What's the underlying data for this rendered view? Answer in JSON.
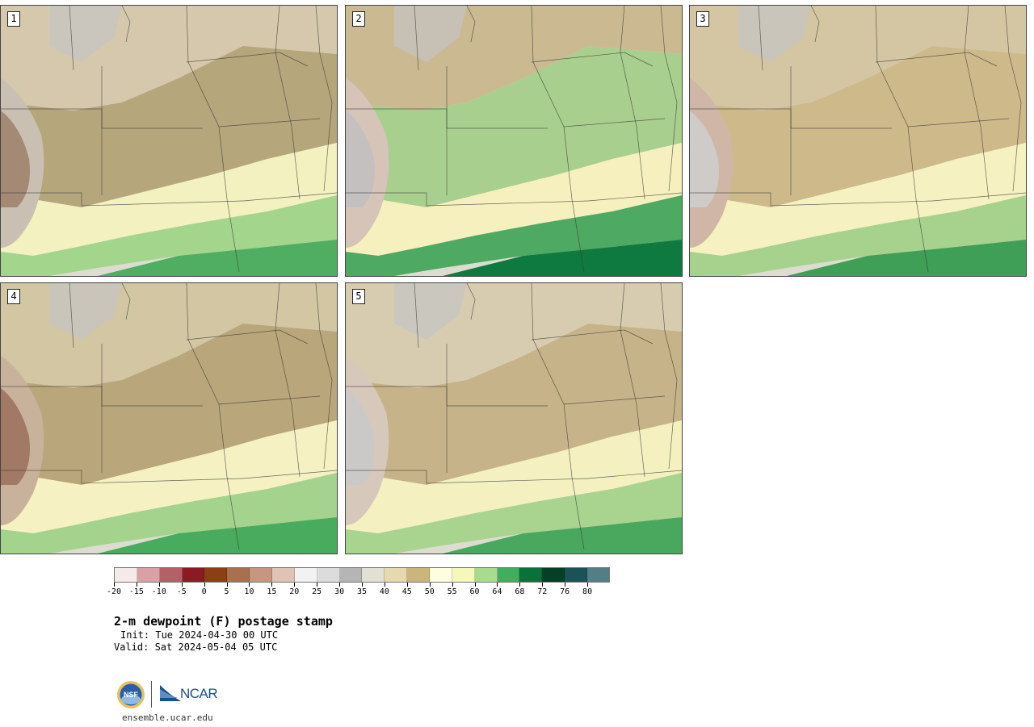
{
  "panels": [
    {
      "label": "1",
      "zones": [
        "#d6c8ac",
        "#b6a67c",
        "#f3f1c0",
        "#a3d58c",
        "#4fae61",
        "#c9c0b3",
        "#9d7f6a"
      ]
    },
    {
      "label": "2",
      "zones": [
        "#cbb992",
        "#a9cf8e",
        "#f5f0be",
        "#4ea962",
        "#0f7a3f",
        "#d7c4b8",
        "#c0c0c0"
      ]
    },
    {
      "label": "3",
      "zones": [
        "#d5c6a3",
        "#ceb98b",
        "#f6f1c0",
        "#a7d28e",
        "#3f9f57",
        "#d0b6a7",
        "#cfcfcf"
      ]
    },
    {
      "label": "4",
      "zones": [
        "#d2c6a3",
        "#b9a67a",
        "#f6f1c2",
        "#a3d38d",
        "#48ab5d",
        "#c9b29c",
        "#9b6f5a"
      ]
    },
    {
      "label": "5",
      "zones": [
        "#d8ccb0",
        "#c6b389",
        "#f4f0c0",
        "#a9d48f",
        "#4aa85e",
        "#d7c8bc",
        "#c9c9c9"
      ]
    }
  ],
  "colorbar": {
    "colors": [
      "#f4eaea",
      "#d9a1a5",
      "#b46066",
      "#8c1a24",
      "#8c3f12",
      "#a8714d",
      "#c6977e",
      "#dfc4b5",
      "#f2f2f2",
      "#dcdcdc",
      "#b5b5b5",
      "#e1e0d2",
      "#e6d9b0",
      "#cbb57b",
      "#fffde0",
      "#f6f8ba",
      "#a9db8f",
      "#42ad5f",
      "#07733b",
      "#053f25",
      "#1b5157",
      "#547d85"
    ],
    "ticks": [
      "-20",
      "-15",
      "-10",
      "-5",
      "0",
      "5",
      "10",
      "15",
      "20",
      "25",
      "30",
      "35",
      "40",
      "45",
      "50",
      "55",
      "60",
      "64",
      "68",
      "72",
      "76",
      "80"
    ]
  },
  "title": "2-m dewpoint (F) postage stamp",
  "init": "Init: Tue 2024-04-30 00 UTC",
  "valid": "Valid: Sat 2024-05-04 05 UTC",
  "logos": {
    "nsf": "NSF",
    "ncar": "NCAR"
  },
  "website": "ensemble.ucar.edu"
}
